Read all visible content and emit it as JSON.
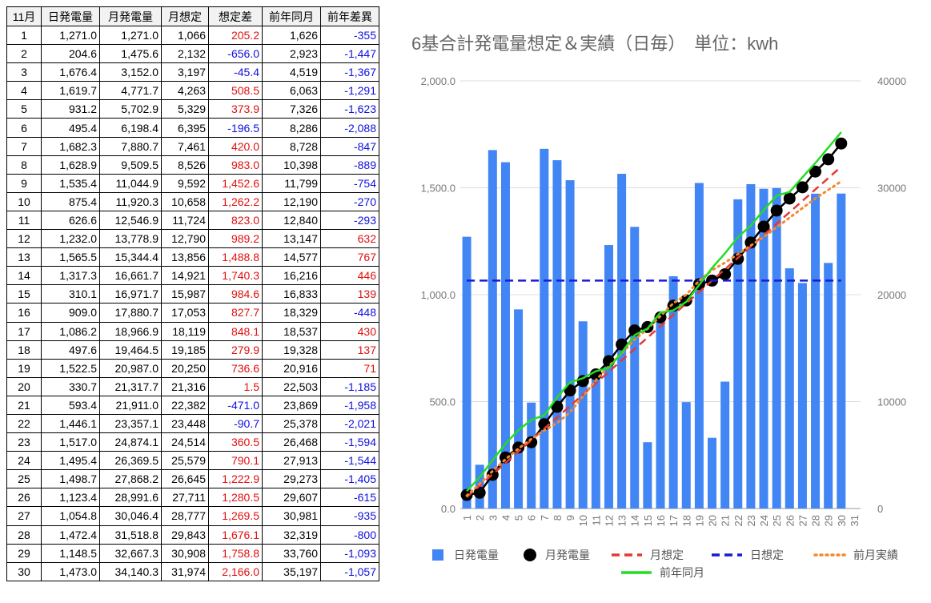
{
  "table": {
    "header": [
      "11月",
      "日発電量",
      "月発電量",
      "月想定",
      "想定差",
      "前年同月",
      "前年差異"
    ],
    "rows": [
      [
        "1",
        "1,271.0",
        "1,271.0",
        "1,066",
        "205.2",
        "1,626",
        "-355"
      ],
      [
        "2",
        "204.6",
        "1,475.6",
        "2,132",
        "-656.0",
        "2,923",
        "-1,447"
      ],
      [
        "3",
        "1,676.4",
        "3,152.0",
        "3,197",
        "-45.4",
        "4,519",
        "-1,367"
      ],
      [
        "4",
        "1,619.7",
        "4,771.7",
        "4,263",
        "508.5",
        "6,063",
        "-1,291"
      ],
      [
        "5",
        "931.2",
        "5,702.9",
        "5,329",
        "373.9",
        "7,326",
        "-1,623"
      ],
      [
        "6",
        "495.4",
        "6,198.4",
        "6,395",
        "-196.5",
        "8,286",
        "-2,088"
      ],
      [
        "7",
        "1,682.3",
        "7,880.7",
        "7,461",
        "420.0",
        "8,728",
        "-847"
      ],
      [
        "8",
        "1,628.9",
        "9,509.5",
        "8,526",
        "983.0",
        "10,398",
        "-889"
      ],
      [
        "9",
        "1,535.4",
        "11,044.9",
        "9,592",
        "1,452.6",
        "11,799",
        "-754"
      ],
      [
        "10",
        "875.4",
        "11,920.3",
        "10,658",
        "1,262.2",
        "12,190",
        "-270"
      ],
      [
        "11",
        "626.6",
        "12,546.9",
        "11,724",
        "823.0",
        "12,840",
        "-293"
      ],
      [
        "12",
        "1,232.0",
        "13,778.9",
        "12,790",
        "989.2",
        "13,147",
        "632"
      ],
      [
        "13",
        "1,565.5",
        "15,344.4",
        "13,856",
        "1,488.8",
        "14,577",
        "767"
      ],
      [
        "14",
        "1,317.3",
        "16,661.7",
        "14,921",
        "1,740.3",
        "16,216",
        "446"
      ],
      [
        "15",
        "310.1",
        "16,971.7",
        "15,987",
        "984.6",
        "16,833",
        "139"
      ],
      [
        "16",
        "909.0",
        "17,880.7",
        "17,053",
        "827.7",
        "18,329",
        "-448"
      ],
      [
        "17",
        "1,086.2",
        "18,966.9",
        "18,119",
        "848.1",
        "18,537",
        "430"
      ],
      [
        "18",
        "497.6",
        "19,464.5",
        "19,185",
        "279.9",
        "19,328",
        "137"
      ],
      [
        "19",
        "1,522.5",
        "20,987.0",
        "20,250",
        "736.6",
        "20,916",
        "71"
      ],
      [
        "20",
        "330.7",
        "21,317.7",
        "21,316",
        "1.5",
        "22,503",
        "-1,185"
      ],
      [
        "21",
        "593.4",
        "21,911.0",
        "22,382",
        "-471.0",
        "23,869",
        "-1,958"
      ],
      [
        "22",
        "1,446.1",
        "23,357.1",
        "23,448",
        "-90.7",
        "25,378",
        "-2,021"
      ],
      [
        "23",
        "1,517.0",
        "24,874.1",
        "24,514",
        "360.5",
        "26,468",
        "-1,594"
      ],
      [
        "24",
        "1,495.4",
        "26,369.5",
        "25,579",
        "790.1",
        "27,913",
        "-1,544"
      ],
      [
        "25",
        "1,498.7",
        "27,868.2",
        "26,645",
        "1,222.9",
        "29,273",
        "-1,405"
      ],
      [
        "26",
        "1,123.4",
        "28,991.6",
        "27,711",
        "1,280.5",
        "29,607",
        "-615"
      ],
      [
        "27",
        "1,054.8",
        "30,046.4",
        "28,777",
        "1,269.5",
        "30,981",
        "-935"
      ],
      [
        "28",
        "1,472.4",
        "31,518.8",
        "29,843",
        "1,676.1",
        "32,319",
        "-800"
      ],
      [
        "29",
        "1,148.5",
        "32,667.3",
        "30,908",
        "1,758.8",
        "33,760",
        "-1,093"
      ],
      [
        "30",
        "1,473.0",
        "34,140.3",
        "31,974",
        "2,166.0",
        "35,197",
        "-1,057"
      ]
    ]
  },
  "chart_data": {
    "type": "bar",
    "title": "6基合計発電量想定＆実績（日毎）　単位：kwh",
    "categories": [
      "1",
      "2",
      "3",
      "4",
      "5",
      "6",
      "7",
      "8",
      "9",
      "10",
      "11",
      "12",
      "13",
      "14",
      "15",
      "16",
      "17",
      "18",
      "19",
      "20",
      "21",
      "22",
      "23",
      "24",
      "25",
      "26",
      "27",
      "28",
      "29",
      "30",
      "31"
    ],
    "ylim": [
      0,
      2000
    ],
    "yticks": [
      {
        "value": 0,
        "label": "0.0"
      },
      {
        "value": 500,
        "label": "500.0"
      },
      {
        "value": 1000,
        "label": "1,000.0"
      },
      {
        "value": 1500,
        "label": "1,500.0"
      },
      {
        "value": 2000,
        "label": "2,000.0"
      }
    ],
    "y2lim": [
      0,
      40000
    ],
    "y2ticks": [
      0,
      10000,
      20000,
      30000,
      40000
    ],
    "grid": true,
    "series": [
      {
        "name": "日発電量",
        "type": "bar",
        "color": "#4285f4",
        "values": [
          1271.0,
          204.6,
          1676.4,
          1619.7,
          931.2,
          495.4,
          1682.3,
          1628.9,
          1535.4,
          875.4,
          626.6,
          1232.0,
          1565.5,
          1317.3,
          310.1,
          909.0,
          1086.2,
          497.6,
          1522.5,
          330.7,
          593.4,
          1446.1,
          1517.0,
          1495.4,
          1498.7,
          1123.4,
          1054.8,
          1472.4,
          1148.5,
          1473.0,
          null
        ]
      },
      {
        "name": "月発電量",
        "type": "line",
        "color": "#000000",
        "marker": "circle",
        "line_style": "solid",
        "axis": "y2",
        "values": [
          1271.0,
          1475.6,
          3152.0,
          4771.7,
          5702.9,
          6198.4,
          7880.7,
          9509.5,
          11044.9,
          11920.3,
          12546.9,
          13778.9,
          15344.4,
          16661.7,
          16971.7,
          17880.7,
          18966.9,
          19464.5,
          20987.0,
          21317.7,
          21911.0,
          23357.1,
          24874.1,
          26369.5,
          27868.2,
          28991.6,
          30046.4,
          31518.8,
          32667.3,
          34140.3,
          null
        ]
      },
      {
        "name": "月想定",
        "type": "line",
        "color": "#e53935",
        "line_style": "dashed",
        "axis": "y2",
        "values": [
          1066,
          2132,
          3197,
          4263,
          5329,
          6395,
          7461,
          8526,
          9592,
          10658,
          11724,
          12790,
          13856,
          14921,
          15987,
          17053,
          18119,
          19185,
          20250,
          21316,
          22382,
          23448,
          24514,
          25579,
          26645,
          27711,
          28777,
          29843,
          30908,
          31974,
          null
        ]
      },
      {
        "name": "日想定",
        "type": "line",
        "color": "#1a1ad6",
        "line_style": "dashed",
        "values": [
          1066,
          1066,
          1066,
          1066,
          1066,
          1066,
          1066,
          1066,
          1066,
          1066,
          1066,
          1066,
          1066,
          1066,
          1066,
          1066,
          1066,
          1066,
          1066,
          1066,
          1066,
          1066,
          1066,
          1066,
          1066,
          1066,
          1066,
          1066,
          1066,
          1066,
          null
        ]
      },
      {
        "name": "前月実績",
        "type": "line",
        "color": "#f4892c",
        "line_style": "dotted",
        "axis": "y2",
        "values": [
          1200,
          2300,
          3500,
          4600,
          5600,
          6500,
          7300,
          8000,
          9000,
          10500,
          12000,
          13300,
          14500,
          15800,
          16800,
          18000,
          19200,
          20000,
          21300,
          22300,
          23000,
          23800,
          24600,
          25400,
          26300,
          27200,
          28100,
          29000,
          29800,
          30600,
          null
        ]
      },
      {
        "name": "前年同月",
        "type": "line",
        "color": "#22dd22",
        "line_style": "solid",
        "axis": "y2",
        "values": [
          1626,
          2923,
          4519,
          6063,
          7326,
          8286,
          8728,
          10398,
          11799,
          12190,
          12840,
          13147,
          14577,
          16216,
          16833,
          18329,
          18537,
          19328,
          20916,
          22503,
          23869,
          25378,
          26468,
          27913,
          29273,
          29607,
          30981,
          32319,
          33760,
          35197,
          null
        ]
      }
    ]
  }
}
